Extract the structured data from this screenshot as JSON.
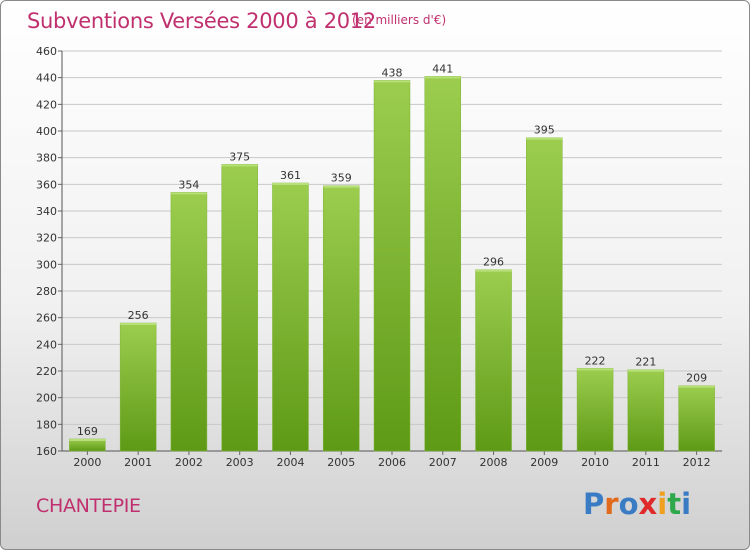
{
  "header": {
    "title": "Subventions Versées 2000 à 2012",
    "unit": "(en milliers d'€)"
  },
  "footer": {
    "commune": "CHANTEPIE",
    "logo": "Proxiti"
  },
  "colors": {
    "title": "#c0306e",
    "bar_light": "#9ccd4e",
    "bar_dark": "#5e9a16",
    "grid": "#c8c8c8",
    "logo_letters": [
      "#3a7cc4",
      "#e26a1c",
      "#3a7cc4",
      "#e02a2a",
      "#f0a020",
      "#2ea84a",
      "#3a7cc4"
    ]
  },
  "chart_data": {
    "type": "bar",
    "title": "Subventions Versées 2000 à 2012",
    "subtitle": "(en milliers d'€)",
    "xlabel": "",
    "ylabel": "",
    "categories": [
      "2000",
      "2001",
      "2002",
      "2003",
      "2004",
      "2005",
      "2006",
      "2007",
      "2008",
      "2009",
      "2010",
      "2011",
      "2012"
    ],
    "values": [
      169,
      256,
      354,
      375,
      361,
      359,
      438,
      441,
      296,
      395,
      222,
      221,
      209
    ],
    "ylim": [
      160,
      460
    ],
    "yticks": [
      160,
      180,
      200,
      220,
      240,
      260,
      280,
      300,
      320,
      340,
      360,
      380,
      400,
      420,
      440,
      460
    ],
    "grid": true,
    "legend": "none",
    "data_labels": true
  }
}
